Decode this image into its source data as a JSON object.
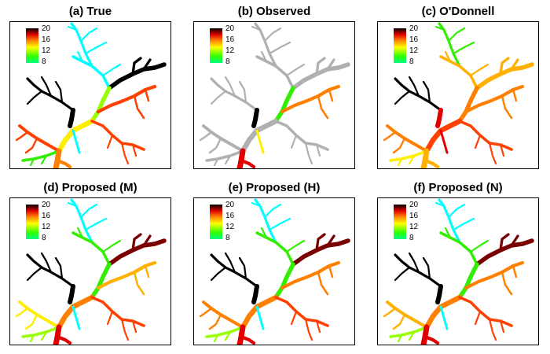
{
  "panels": [
    {
      "id": "a",
      "title": "(a) True",
      "variant": "true"
    },
    {
      "id": "b",
      "title": "(b) Observed",
      "variant": "observed"
    },
    {
      "id": "c",
      "title": "(c) O'Donnell",
      "variant": "odonnell"
    },
    {
      "id": "d",
      "title": "(d) Proposed (M)",
      "variant": "proposedM"
    },
    {
      "id": "e",
      "title": "(e) Proposed (H)",
      "variant": "proposedH"
    },
    {
      "id": "f",
      "title": "(f) Proposed (N)",
      "variant": "proposedN"
    }
  ],
  "legend": {
    "ticks": [
      "20",
      "16",
      "12",
      "8"
    ],
    "colors": [
      "#000000",
      "#e00000",
      "#ff8000",
      "#ffff00",
      "#33ff00",
      "#00ff80"
    ]
  },
  "palette": {
    "black": "#000000",
    "darkred": "#7a0000",
    "red": "#e00000",
    "orangered": "#ff4000",
    "orange": "#ff8000",
    "amber": "#ffb000",
    "yellow": "#ffee00",
    "lime": "#99ff00",
    "green": "#33ee00",
    "cyan": "#00ffff",
    "gray": "#b0b0b0"
  }
}
